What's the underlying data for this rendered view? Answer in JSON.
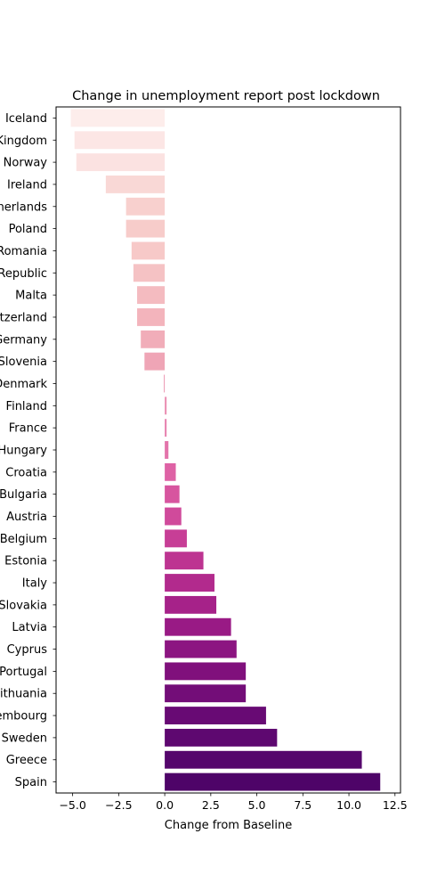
{
  "chart_data": {
    "type": "bar",
    "orientation": "horizontal",
    "title": "Change in unemployment report post lockdown",
    "xlabel": "Change from Baseline",
    "ylabel": "",
    "xlim": [
      -5.9,
      12.8
    ],
    "xticks": [
      -5.0,
      -2.5,
      0.0,
      2.5,
      5.0,
      7.5,
      10.0,
      12.5
    ],
    "xtick_labels": [
      "−5.0",
      "−2.5",
      "0.0",
      "2.5",
      "5.0",
      "7.5",
      "10.0",
      "12.5"
    ],
    "grid": false,
    "categories": [
      "Iceland",
      "United Kingdom",
      "Norway",
      "Ireland",
      "Netherlands",
      "Poland",
      "Romania",
      "Czech Republic",
      "Malta",
      "Switzerland",
      "Germany",
      "Slovenia",
      "Denmark",
      "Finland",
      "France",
      "Hungary",
      "Croatia",
      "Bulgaria",
      "Austria",
      "Belgium",
      "Estonia",
      "Italy",
      "Slovakia",
      "Latvia",
      "Cyprus",
      "Portugal",
      "Lithuania",
      "Luxembourg",
      "Sweden",
      "Greece",
      "Spain"
    ],
    "values": [
      -5.1,
      -4.9,
      -4.8,
      -3.2,
      -2.1,
      -2.1,
      -1.8,
      -1.7,
      -1.5,
      -1.5,
      -1.3,
      -1.1,
      -0.05,
      0.1,
      0.1,
      0.2,
      0.6,
      0.8,
      0.9,
      1.2,
      2.1,
      2.7,
      2.8,
      3.6,
      3.9,
      4.4,
      4.4,
      5.5,
      6.1,
      10.7,
      11.7
    ],
    "colors": [
      "#fdedeb",
      "#fce6e5",
      "#fbe2e1",
      "#f9d8d6",
      "#f8d0ce",
      "#f7ccca",
      "#f7c9c8",
      "#f5c2c4",
      "#f4bbc0",
      "#f3b4bc",
      "#f1adb9",
      "#efa5b6",
      "#ec9ab4",
      "#ea8fb2",
      "#e782af",
      "#e374ab",
      "#de62a5",
      "#d7559f",
      "#d04a9b",
      "#c73e96",
      "#bd3491",
      "#b22a8d",
      "#a62289",
      "#991a85",
      "#8c1581",
      "#80107c",
      "#730d78",
      "#680a74",
      "#5e0870",
      "#55066c",
      "#4e0468"
    ]
  }
}
